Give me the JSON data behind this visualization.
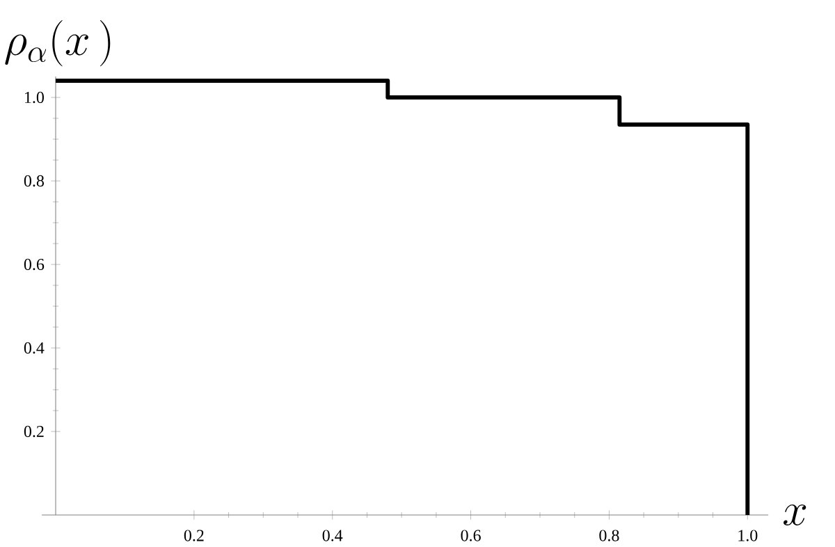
{
  "chart_data": {
    "type": "step",
    "xlabel": "x",
    "ylabel": "\\rho_{\\alpha}(x\\,)",
    "x": [
      0,
      0.48,
      0.815,
      1.0
    ],
    "values": [
      1.04,
      1.0,
      0.935,
      0
    ],
    "color": "#000000",
    "xlim": [
      -0.02,
      1.03
    ],
    "ylim": [
      0,
      1.05
    ],
    "xticks": [
      0.2,
      0.4,
      0.6,
      0.8,
      {
        "value": 1.0,
        "label": "1.0"
      }
    ],
    "yticks": [
      0.2,
      0.4,
      0.6,
      0.8,
      {
        "value": 1.0,
        "label": "1.0"
      }
    ]
  }
}
